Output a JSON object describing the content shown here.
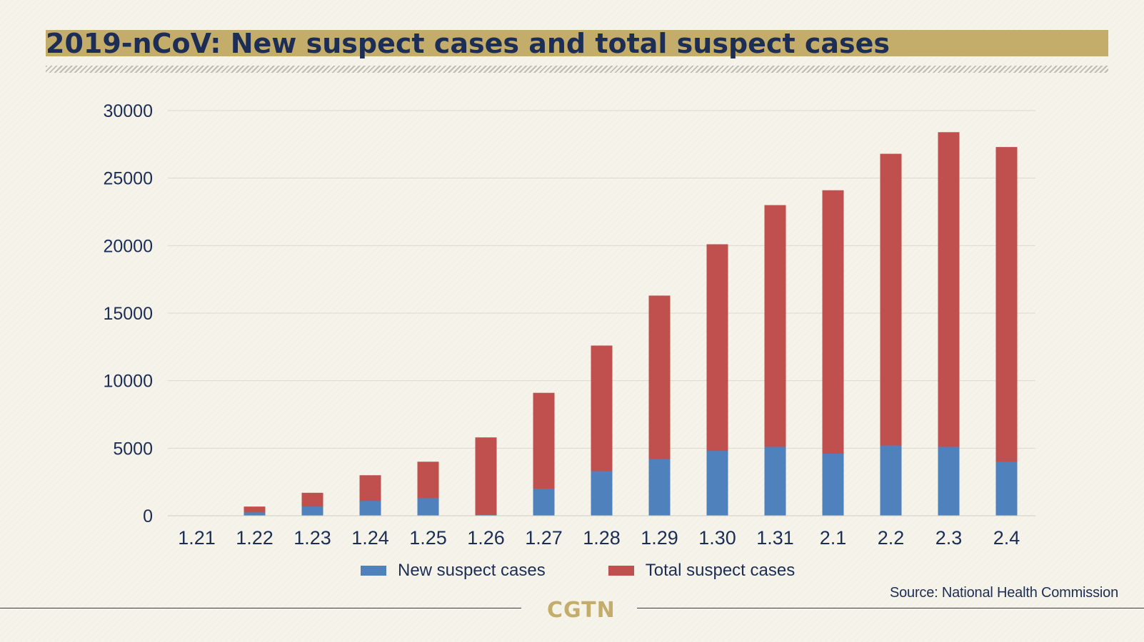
{
  "title": "2019-nCoV: New suspect cases and total suspect cases",
  "source": "Source: National Health Commission",
  "logo_text": "CGTN",
  "legend": [
    {
      "label": "New suspect cases",
      "color": "#4f81bd"
    },
    {
      "label": "Total suspect cases",
      "color": "#c0504d"
    }
  ],
  "colors": {
    "title_band": "#c4ad6a",
    "text": "#1c2e55",
    "background": "#f6f3ea"
  },
  "chart_data": {
    "type": "bar",
    "stacked": "overlay",
    "title": "2019-nCoV: New suspect cases and total suspect cases",
    "xlabel": "",
    "ylabel": "",
    "categories": [
      "1.21",
      "1.22",
      "1.23",
      "1.24",
      "1.25",
      "1.26",
      "1.27",
      "1.28",
      "1.29",
      "1.30",
      "1.31",
      "2.1",
      "2.2",
      "2.3",
      "2.4"
    ],
    "series": [
      {
        "name": "Total suspect cases",
        "color": "#c0504d",
        "values": [
          0,
          680,
          1700,
          3000,
          4000,
          5800,
          9100,
          12600,
          16300,
          20100,
          23000,
          24100,
          26800,
          28400,
          27300
        ]
      },
      {
        "name": "New suspect cases",
        "color": "#4f81bd",
        "values": [
          0,
          250,
          680,
          1100,
          1300,
          60,
          2000,
          3300,
          4200,
          4800,
          5100,
          4600,
          5200,
          5100,
          4000
        ]
      }
    ],
    "ylim": [
      0,
      30000
    ],
    "yticks": [
      "0",
      "5000",
      "10000",
      "15000",
      "20000",
      "25000",
      "30000"
    ],
    "grid": true,
    "legend_position": "bottom-center"
  }
}
